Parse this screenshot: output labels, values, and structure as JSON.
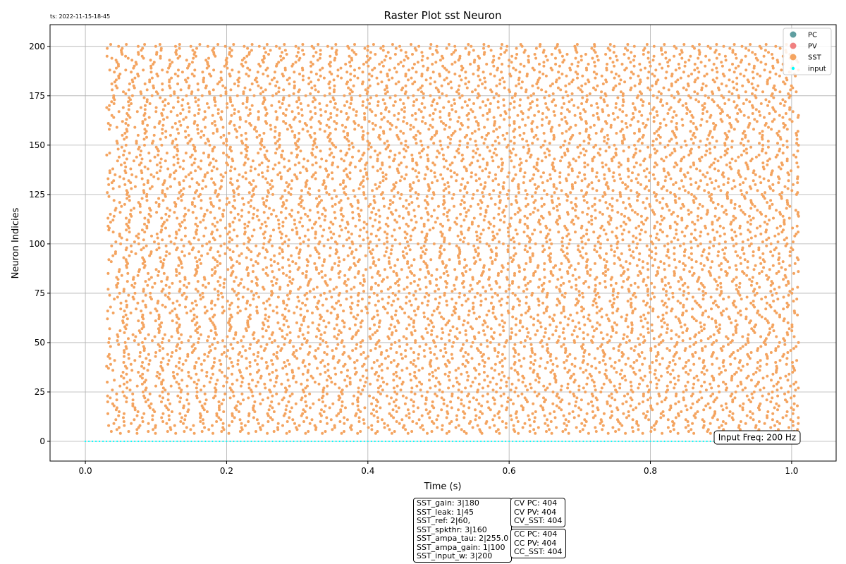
{
  "timestamp_label": "ts: 2022-11-15-18-45",
  "chart_data": {
    "type": "scatter",
    "title": "Raster Plot sst Neuron",
    "xlabel": "Time (s)",
    "ylabel": "Neuron Indicies",
    "xlim": [
      -0.05,
      1.063
    ],
    "ylim": [
      -10,
      211
    ],
    "xticks": [
      0.0,
      0.2,
      0.4,
      0.6,
      0.8,
      1.0
    ],
    "xtick_labels": [
      "0.0",
      "0.2",
      "0.4",
      "0.6",
      "0.8",
      "1.0"
    ],
    "yticks": [
      0,
      25,
      50,
      75,
      100,
      125,
      150,
      175,
      200
    ],
    "ytick_labels": [
      "0",
      "25",
      "50",
      "75",
      "100",
      "125",
      "150",
      "175",
      "200"
    ],
    "grid": true,
    "legend_position": "top-right",
    "legend": [
      {
        "label": "PC",
        "color": "#5f9ea0"
      },
      {
        "label": "PV",
        "color": "#f08080"
      },
      {
        "label": "SST",
        "color": "#f4a460"
      },
      {
        "label": "input",
        "color": "#00ffff"
      }
    ],
    "series": [
      {
        "name": "SST",
        "color": "#f4a460",
        "neuron_index_range": [
          4,
          201
        ],
        "time_range_s": [
          0.03,
          1.01
        ],
        "approx_rate_hz": 40
      },
      {
        "name": "input",
        "color": "#00ffff",
        "neuron_index": 0,
        "rate_hz": 200,
        "time_range_s": [
          0.0,
          1.0
        ]
      }
    ],
    "annotation": "Input Freq: 200 Hz"
  },
  "param_box": [
    "SST_gain: 3|180",
    "SST_leak: 1|45",
    "SST_ref: 2|60,",
    "SST_spkthr: 3|160",
    "SST_ampa_tau: 2|255.0",
    "SST_ampa_gain: 1|100",
    "SST_input_w: 3|200"
  ],
  "cv_box": [
    "CV PC: 404",
    "CV PV: 404",
    "CV_SST: 404"
  ],
  "cc_box": [
    "CC PC: 404",
    "CC PV: 404",
    "CC_SST: 404"
  ]
}
